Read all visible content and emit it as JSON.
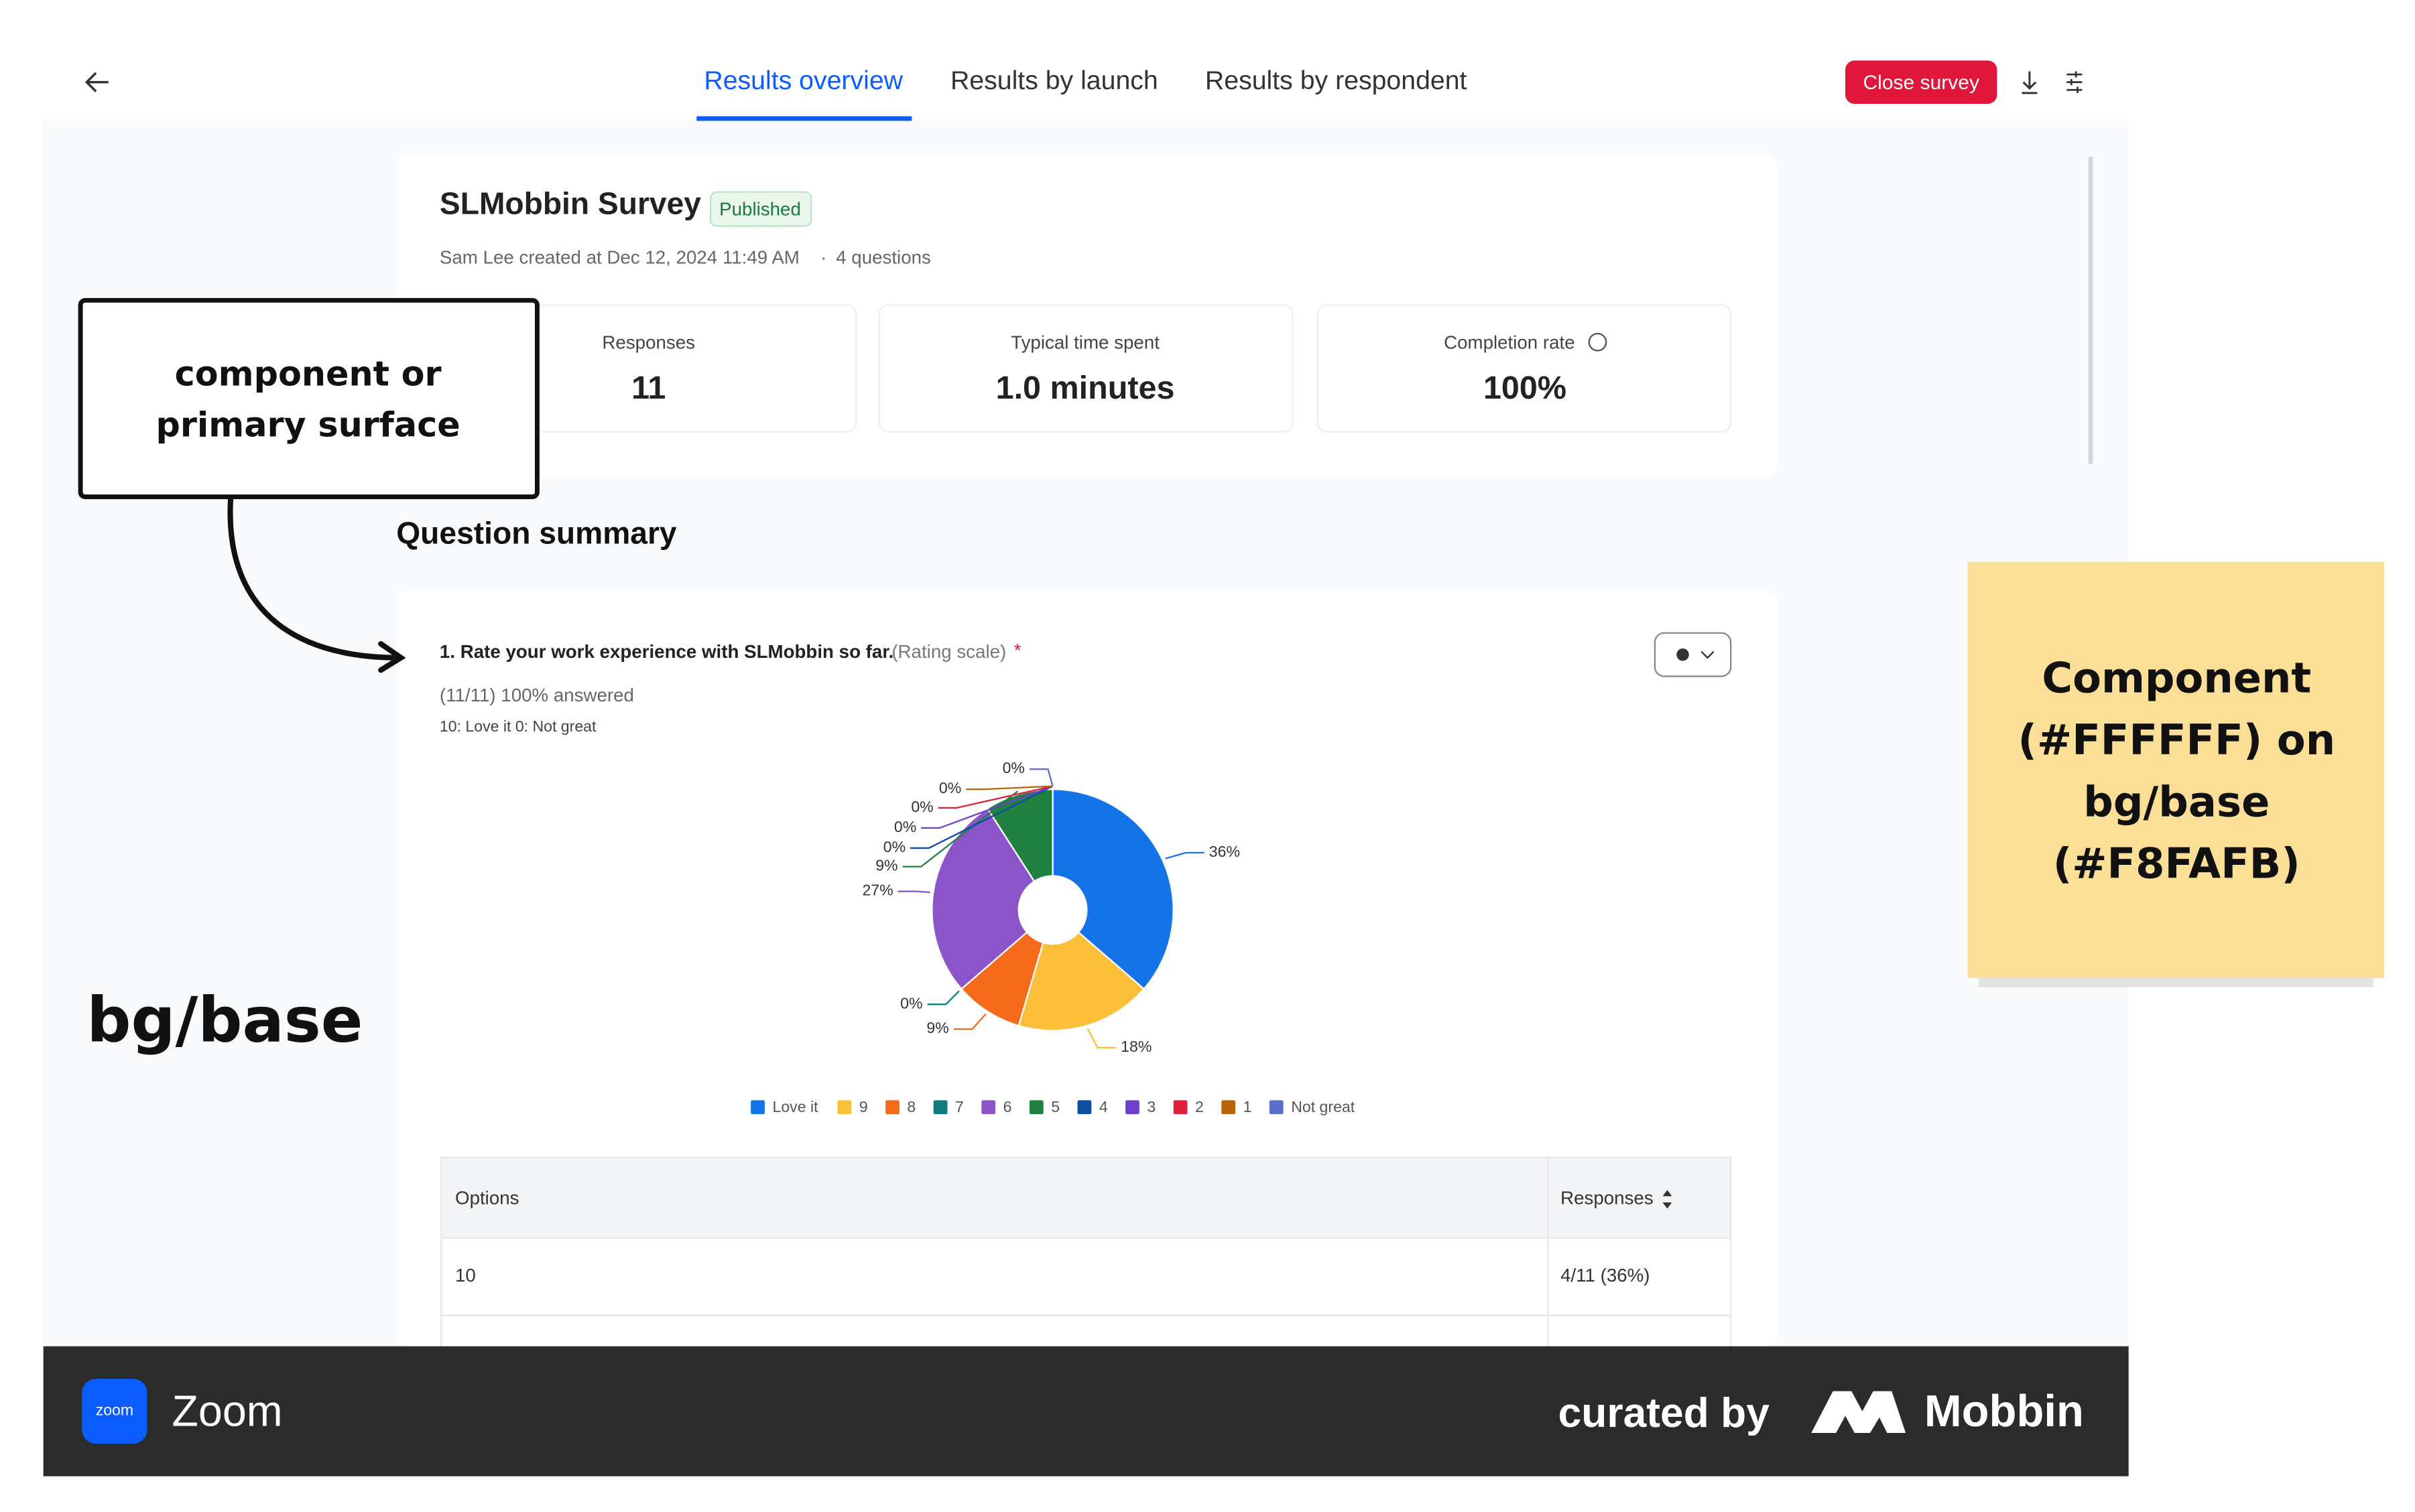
{
  "tabs": [
    "Results overview",
    "Results by launch",
    "Results by respondent"
  ],
  "close_button": "Close survey",
  "survey": {
    "title": "SLMobbin Survey",
    "status": "Published",
    "meta": "Sam Lee created at Dec 12, 2024 11:49 AM",
    "separator": "·",
    "questions": "4 questions"
  },
  "stats": [
    {
      "label": "Responses",
      "value": "11"
    },
    {
      "label": "Typical time spent",
      "value": "1.0 minutes"
    },
    {
      "label": "Completion rate",
      "value": "100%"
    }
  ],
  "section_title": "Question summary",
  "question": {
    "title": "1. Rate your work experience with SLMobbin so far.",
    "type": "(Rating scale)",
    "required": "*",
    "answered": "(11/11) 100% answered",
    "scale": "10: Love it 0: Not great"
  },
  "chart_data": {
    "type": "pie",
    "donut": true,
    "categories": [
      "Love it",
      "9",
      "8",
      "7",
      "6",
      "5",
      "4",
      "3",
      "2",
      "1",
      "Not great"
    ],
    "values": [
      36,
      18,
      9,
      0,
      27,
      9,
      0,
      0,
      0,
      0,
      0
    ],
    "value_labels": [
      "36%",
      "18%",
      "9%",
      "0%",
      "27%",
      "9%",
      "0%",
      "0%",
      "0%",
      "0%",
      "0%"
    ],
    "colors": [
      "#1473e6",
      "#fbbf3a",
      "#f56a1b",
      "#0e7d7d",
      "#8b55c9",
      "#20803f",
      "#0b4ea2",
      "#6f3fcf",
      "#e0203c",
      "#b8650a",
      "#5b6fc9"
    ]
  },
  "table": {
    "header": [
      "Options",
      "Responses"
    ],
    "rows": [
      [
        "10",
        "4/11 (36%)"
      ]
    ]
  },
  "annotations": {
    "callout": [
      "component or",
      "primary surface"
    ],
    "label": "bg/base",
    "note": [
      "Component",
      "(#FFFFFF) on",
      "bg/base",
      "(#F8FAFB)"
    ]
  },
  "footer": {
    "app_icon": "zoom",
    "app": "Zoom",
    "curated": "curated by",
    "brand": "Mobbin"
  }
}
